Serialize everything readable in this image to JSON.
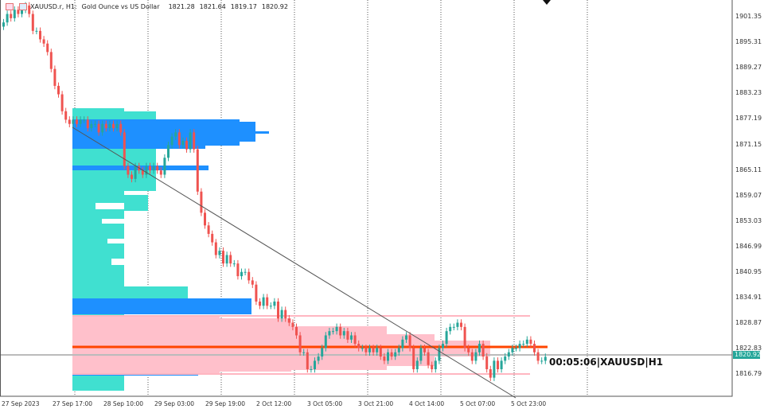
{
  "header": {
    "symbol": "XAUUSD.r, H1:",
    "description": "Gold Ounce vs US Dollar",
    "open": "1821.28",
    "high": "1821.64",
    "low": "1819.17",
    "close": "1820.92"
  },
  "timer_label": "00:05:06|XAUUSD|H1",
  "current_price_label": "1820.92",
  "colors": {
    "bull": "#26a69a",
    "bear": "#ef5350",
    "profile_teal": "#40e0d0",
    "profile_blue": "#1e90ff",
    "profile_pink": "#ffc0cb",
    "poc": "#ff4500"
  },
  "chart_data": {
    "type": "candlestick",
    "title": "",
    "ylim": [
      1812,
      1905
    ],
    "y_ticks": [
      "1901.35",
      "1895.31",
      "1889.27",
      "1883.23",
      "1877.19",
      "1871.15",
      "1865.11",
      "1859.07",
      "1853.03",
      "1846.99",
      "1840.95",
      "1834.91",
      "1828.87",
      "1822.83",
      "1816.79"
    ],
    "x_ticks": [
      "27 Sep 2023",
      "27 Sep 17:00",
      "28 Sep 10:00",
      "29 Sep 03:00",
      "29 Sep 19:00",
      "2 Oct 12:00",
      "3 Oct 05:00",
      "3 Oct 21:00",
      "4 Oct 14:00",
      "5 Oct 07:00",
      "5 Oct 23:00"
    ],
    "closes": [
      1900,
      1902,
      1901,
      1903,
      1902,
      1903,
      1904,
      1902,
      1898,
      1898,
      1896,
      1895,
      1893,
      1889,
      1885,
      1883,
      1879,
      1877,
      1876,
      1877,
      1876,
      1877,
      1877,
      1875,
      1876,
      1876,
      1874,
      1876,
      1875,
      1876,
      1875,
      1876,
      1874,
      1866,
      1864,
      1863,
      1866,
      1865,
      1864,
      1866,
      1865,
      1866,
      1865,
      1864,
      1868,
      1871,
      1873,
      1874,
      1871,
      1872,
      1870,
      1874,
      1870,
      1860,
      1855,
      1852,
      1850,
      1848,
      1845,
      1846,
      1843,
      1845,
      1843,
      1843,
      1840,
      1841,
      1841,
      1839,
      1838,
      1834,
      1833,
      1835,
      1833,
      1833,
      1834,
      1830,
      1832,
      1830,
      1829,
      1828,
      1826,
      1822,
      1822,
      1818,
      1818,
      1820,
      1821,
      1823,
      1826,
      1827,
      1827,
      1828,
      1826,
      1827,
      1825,
      1826,
      1824,
      1823,
      1823,
      1822,
      1823,
      1822,
      1823,
      1821,
      1820,
      1822,
      1821,
      1822,
      1823,
      1825,
      1826,
      1823,
      1818,
      1820,
      1823,
      1822,
      1819,
      1818,
      1820,
      1823,
      1824,
      1827,
      1828,
      1828,
      1829,
      1828,
      1823,
      1822,
      1820,
      1822,
      1824,
      1821,
      1818,
      1816,
      1820,
      1818,
      1820,
      1821,
      1822,
      1823,
      1823,
      1824,
      1824,
      1825,
      1824,
      1822,
      1820,
      1820,
      1820.92
    ],
    "poc_price": 1824.0,
    "value_area": [
      1817.0,
      1830.0
    ],
    "bid_price": 1820.92
  }
}
